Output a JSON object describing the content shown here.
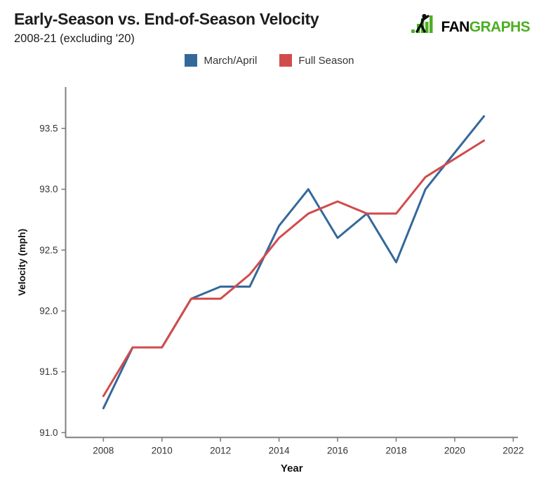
{
  "header": {
    "title": "Early-Season vs. End-of-Season Velocity",
    "subtitle": "2008-21 (excluding '20)",
    "logo": {
      "fan": "FAN",
      "graphs": "GRAPHS",
      "green": "#4DAE23"
    }
  },
  "legend": [
    {
      "label": "March/April",
      "color": "#34689B"
    },
    {
      "label": "Full Season",
      "color": "#D24B4B"
    }
  ],
  "chart_data": {
    "type": "line",
    "title": "Early-Season vs. End-of-Season Velocity",
    "subtitle": "2008-21 (excluding '20)",
    "x": [
      2008,
      2009,
      2010,
      2011,
      2012,
      2013,
      2014,
      2015,
      2016,
      2017,
      2018,
      2019,
      2021
    ],
    "series": [
      {
        "name": "March/April",
        "color": "#34689B",
        "values": [
          91.2,
          91.7,
          91.7,
          92.1,
          92.2,
          92.2,
          92.7,
          93.0,
          92.6,
          92.8,
          92.4,
          93.0,
          93.6
        ]
      },
      {
        "name": "Full Season",
        "color": "#D24B4B",
        "values": [
          91.3,
          91.7,
          91.7,
          92.1,
          92.1,
          92.3,
          92.6,
          92.8,
          92.9,
          92.8,
          92.8,
          93.1,
          93.4
        ]
      }
    ],
    "xlabel": "Year",
    "ylabel": "Velocity (mph)",
    "x_ticks": [
      2008,
      2010,
      2012,
      2014,
      2016,
      2018,
      2020,
      2022
    ],
    "y_ticks": [
      91.0,
      91.5,
      92.0,
      92.5,
      93.0,
      93.5
    ],
    "xlim": [
      2006.71,
      2022.16
    ],
    "ylim": [
      90.96,
      93.84
    ],
    "grid": false,
    "legend_position": "top-center",
    "note": "2020 excluded; lines drawn continuously from 2019 to 2021"
  }
}
